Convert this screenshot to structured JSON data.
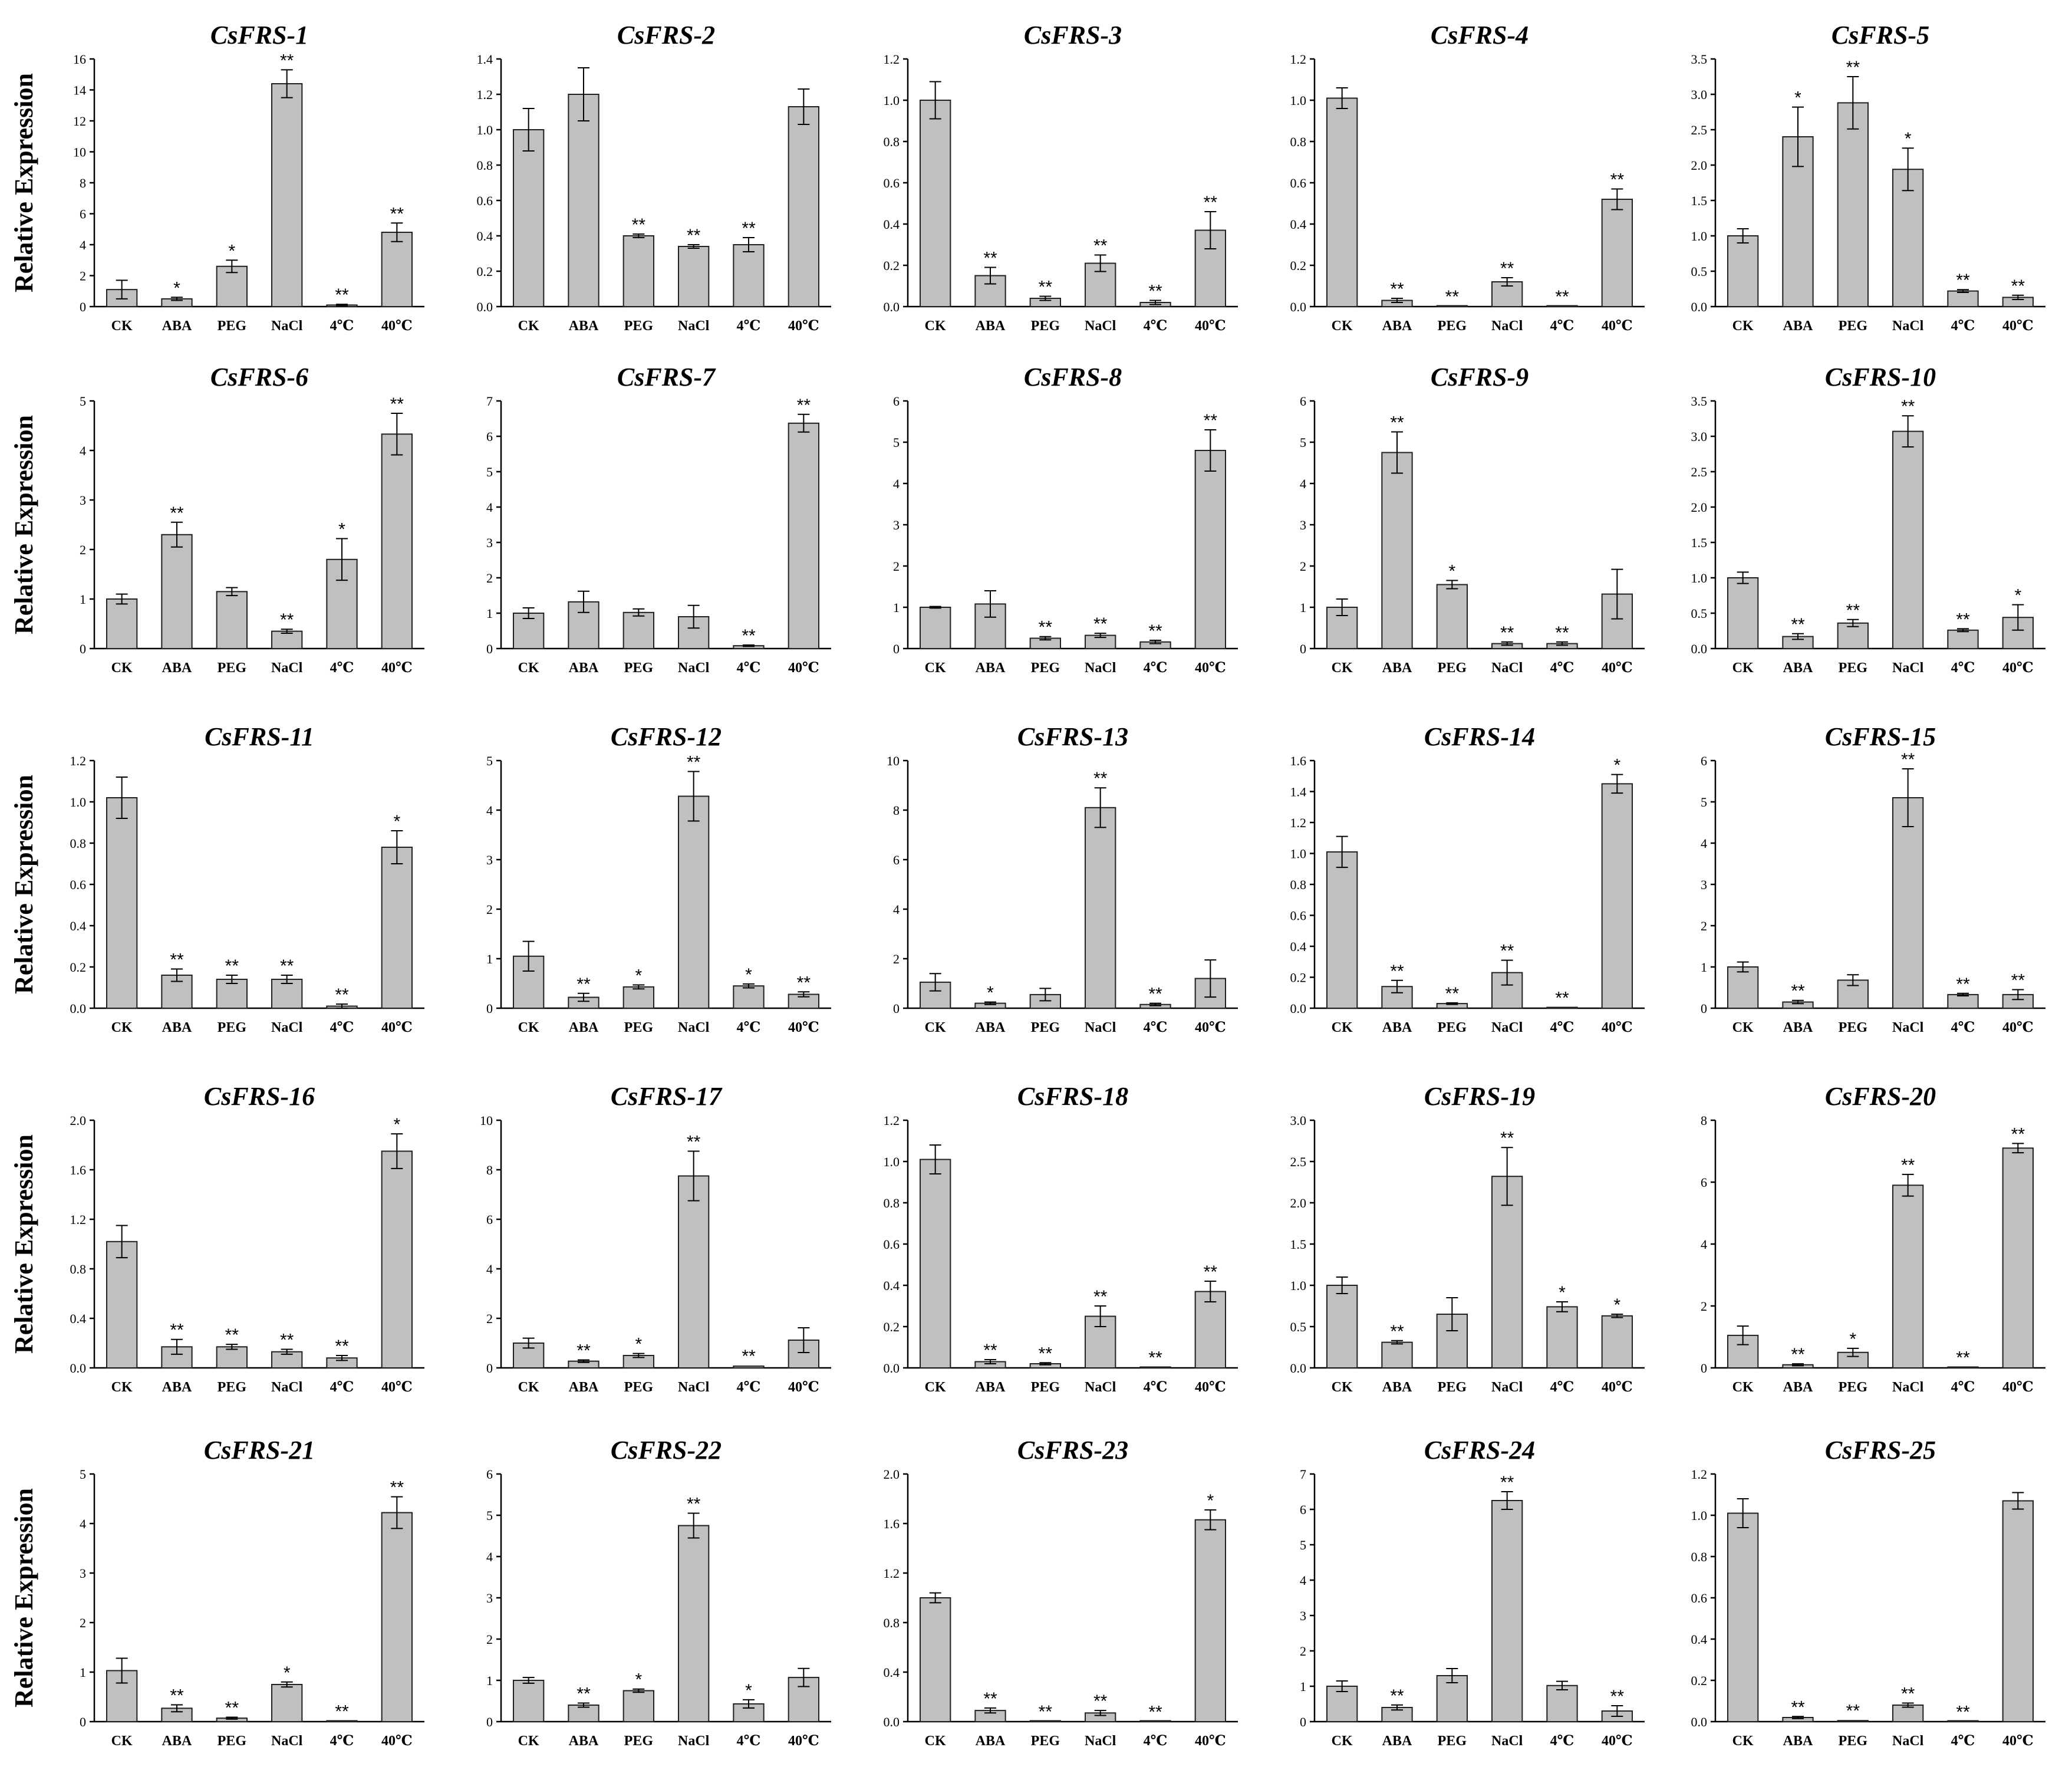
{
  "figure": {
    "ylabel": "Relative Expression",
    "bar_color": "#c0c0c0",
    "axis_color": "#000000"
  },
  "chart_data": [
    {
      "type": "bar",
      "title": "CsFRS-1",
      "ylabel": "Relative Expression",
      "categories": [
        "CK",
        "ABA",
        "PEG",
        "NaCl",
        "4℃",
        "40℃"
      ],
      "values": [
        1.1,
        0.5,
        2.6,
        14.4,
        0.1,
        4.8
      ],
      "errors": [
        0.6,
        0.1,
        0.4,
        0.9,
        0.05,
        0.6
      ],
      "significance": [
        "",
        "*",
        "*",
        "**",
        "**",
        "**"
      ],
      "ylim": [
        0,
        16
      ],
      "yticks": [
        "0",
        "2",
        "4",
        "6",
        "8",
        "10",
        "12",
        "14",
        "16"
      ]
    },
    {
      "type": "bar",
      "title": "CsFRS-2",
      "ylabel": "",
      "categories": [
        "CK",
        "ABA",
        "PEG",
        "NaCl",
        "4℃",
        "40℃"
      ],
      "values": [
        1.0,
        1.2,
        0.4,
        0.34,
        0.35,
        1.13
      ],
      "errors": [
        0.12,
        0.15,
        0.01,
        0.01,
        0.04,
        0.1
      ],
      "significance": [
        "",
        "",
        "**",
        "**",
        "**",
        ""
      ],
      "ylim": [
        0,
        1.4
      ],
      "yticks": [
        "0.0",
        "0.2",
        "0.4",
        "0.6",
        "0.8",
        "1.0",
        "1.2",
        "1.4"
      ]
    },
    {
      "type": "bar",
      "title": "CsFRS-3",
      "ylabel": "",
      "categories": [
        "CK",
        "ABA",
        "PEG",
        "NaCl",
        "4℃",
        "40℃"
      ],
      "values": [
        1.0,
        0.15,
        0.04,
        0.21,
        0.02,
        0.37
      ],
      "errors": [
        0.09,
        0.04,
        0.01,
        0.04,
        0.01,
        0.09
      ],
      "significance": [
        "",
        "**",
        "**",
        "**",
        "**",
        "**"
      ],
      "ylim": [
        0,
        1.2
      ],
      "yticks": [
        "0.0",
        "0.2",
        "0.4",
        "0.6",
        "0.8",
        "1.0",
        "1.2"
      ]
    },
    {
      "type": "bar",
      "title": "CsFRS-4",
      "ylabel": "",
      "categories": [
        "CK",
        "ABA",
        "PEG",
        "NaCl",
        "4℃",
        "40℃"
      ],
      "values": [
        1.01,
        0.03,
        0.002,
        0.12,
        0.002,
        0.52
      ],
      "errors": [
        0.05,
        0.01,
        0.001,
        0.02,
        0.001,
        0.05
      ],
      "significance": [
        "",
        "**",
        "**",
        "**",
        "**",
        "**"
      ],
      "ylim": [
        0,
        1.2
      ],
      "yticks": [
        "0.0",
        "0.2",
        "0.4",
        "0.6",
        "0.8",
        "1.0",
        "1.2"
      ]
    },
    {
      "type": "bar",
      "title": "CsFRS-5",
      "ylabel": "",
      "categories": [
        "CK",
        "ABA",
        "PEG",
        "NaCl",
        "4℃",
        "40℃"
      ],
      "values": [
        1.0,
        2.4,
        2.88,
        1.94,
        0.22,
        0.13
      ],
      "errors": [
        0.1,
        0.42,
        0.37,
        0.3,
        0.02,
        0.03
      ],
      "significance": [
        "",
        "*",
        "**",
        "*",
        "**",
        "**"
      ],
      "ylim": [
        0,
        3.5
      ],
      "yticks": [
        "0.0",
        "0.5",
        "1.0",
        "1.5",
        "2.0",
        "2.5",
        "3.0",
        "3.5"
      ]
    },
    {
      "type": "bar",
      "title": "CsFRS-6",
      "ylabel": "Relative Expression",
      "categories": [
        "CK",
        "ABA",
        "PEG",
        "NaCl",
        "4℃",
        "40℃"
      ],
      "values": [
        1.0,
        2.3,
        1.15,
        0.35,
        1.8,
        4.33
      ],
      "errors": [
        0.1,
        0.25,
        0.08,
        0.04,
        0.42,
        0.42
      ],
      "significance": [
        "",
        "**",
        "",
        "**",
        "*",
        "**"
      ],
      "ylim": [
        0,
        5
      ],
      "yticks": [
        "0",
        "1",
        "2",
        "3",
        "4",
        "5"
      ]
    },
    {
      "type": "bar",
      "title": "CsFRS-7",
      "ylabel": "",
      "categories": [
        "CK",
        "ABA",
        "PEG",
        "NaCl",
        "4℃",
        "40℃"
      ],
      "values": [
        1.0,
        1.32,
        1.02,
        0.9,
        0.08,
        6.37
      ],
      "errors": [
        0.15,
        0.3,
        0.1,
        0.32,
        0.02,
        0.25
      ],
      "significance": [
        "",
        "",
        "",
        "",
        "**",
        "**"
      ],
      "ylim": [
        0,
        7
      ],
      "yticks": [
        "0",
        "1",
        "2",
        "3",
        "4",
        "5",
        "6",
        "7"
      ]
    },
    {
      "type": "bar",
      "title": "CsFRS-8",
      "ylabel": "",
      "categories": [
        "CK",
        "ABA",
        "PEG",
        "NaCl",
        "4℃",
        "40℃"
      ],
      "values": [
        1.0,
        1.08,
        0.25,
        0.32,
        0.16,
        4.8
      ],
      "errors": [
        0.02,
        0.32,
        0.04,
        0.05,
        0.04,
        0.5
      ],
      "significance": [
        "",
        "",
        "**",
        "**",
        "**",
        "**"
      ],
      "ylim": [
        0,
        6
      ],
      "yticks": [
        "0",
        "1",
        "2",
        "3",
        "4",
        "5",
        "6"
      ]
    },
    {
      "type": "bar",
      "title": "CsFRS-9",
      "ylabel": "",
      "categories": [
        "CK",
        "ABA",
        "PEG",
        "NaCl",
        "4℃",
        "40℃"
      ],
      "values": [
        1.0,
        4.75,
        1.55,
        0.12,
        0.12,
        1.32
      ],
      "errors": [
        0.2,
        0.5,
        0.1,
        0.04,
        0.04,
        0.6
      ],
      "significance": [
        "",
        "**",
        "*",
        "**",
        "**",
        ""
      ],
      "ylim": [
        0,
        6
      ],
      "yticks": [
        "0",
        "1",
        "2",
        "3",
        "4",
        "5",
        "6"
      ]
    },
    {
      "type": "bar",
      "title": "CsFRS-10",
      "ylabel": "",
      "categories": [
        "CK",
        "ABA",
        "PEG",
        "NaCl",
        "4℃",
        "40℃"
      ],
      "values": [
        1.0,
        0.17,
        0.36,
        3.07,
        0.26,
        0.44
      ],
      "errors": [
        0.08,
        0.04,
        0.05,
        0.22,
        0.02,
        0.18
      ],
      "significance": [
        "",
        "**",
        "**",
        "**",
        "**",
        "*"
      ],
      "ylim": [
        0,
        3.5
      ],
      "yticks": [
        "0.0",
        "0.5",
        "1.0",
        "1.5",
        "2.0",
        "2.5",
        "3.0",
        "3.5"
      ]
    },
    {
      "type": "bar",
      "title": "CsFRS-11",
      "ylabel": "Relative Expression",
      "categories": [
        "CK",
        "ABA",
        "PEG",
        "NaCl",
        "4℃",
        "40℃"
      ],
      "values": [
        1.02,
        0.16,
        0.14,
        0.14,
        0.01,
        0.78
      ],
      "errors": [
        0.1,
        0.03,
        0.02,
        0.02,
        0.01,
        0.08
      ],
      "significance": [
        "",
        "**",
        "**",
        "**",
        "**",
        "*"
      ],
      "ylim": [
        0,
        1.2
      ],
      "yticks": [
        "0.0",
        "0.2",
        "0.4",
        "0.6",
        "0.8",
        "1.0",
        "1.2"
      ]
    },
    {
      "type": "bar",
      "title": "CsFRS-12",
      "ylabel": "",
      "categories": [
        "CK",
        "ABA",
        "PEG",
        "NaCl",
        "4℃",
        "40℃"
      ],
      "values": [
        1.05,
        0.22,
        0.43,
        4.28,
        0.45,
        0.28
      ],
      "errors": [
        0.3,
        0.08,
        0.04,
        0.5,
        0.04,
        0.05
      ],
      "significance": [
        "",
        "**",
        "*",
        "**",
        "*",
        "**"
      ],
      "ylim": [
        0,
        5
      ],
      "yticks": [
        "0",
        "1",
        "2",
        "3",
        "4",
        "5"
      ]
    },
    {
      "type": "bar",
      "title": "CsFRS-13",
      "ylabel": "",
      "categories": [
        "CK",
        "ABA",
        "PEG",
        "NaCl",
        "4℃",
        "40℃"
      ],
      "values": [
        1.05,
        0.2,
        0.55,
        8.1,
        0.15,
        1.2
      ],
      "errors": [
        0.35,
        0.05,
        0.25,
        0.8,
        0.05,
        0.75
      ],
      "significance": [
        "",
        "*",
        "",
        "**",
        "**",
        ""
      ],
      "ylim": [
        0,
        10
      ],
      "yticks": [
        "0",
        "2",
        "4",
        "6",
        "8",
        "10"
      ]
    },
    {
      "type": "bar",
      "title": "CsFRS-14",
      "ylabel": "",
      "categories": [
        "CK",
        "ABA",
        "PEG",
        "NaCl",
        "4℃",
        "40℃"
      ],
      "values": [
        1.01,
        0.14,
        0.03,
        0.23,
        0.003,
        1.45
      ],
      "errors": [
        0.1,
        0.04,
        0.005,
        0.08,
        0.002,
        0.06
      ],
      "significance": [
        "",
        "**",
        "**",
        "**",
        "**",
        "*"
      ],
      "ylim": [
        0,
        1.6
      ],
      "yticks": [
        "0.0",
        "0.2",
        "0.4",
        "0.6",
        "0.8",
        "1.0",
        "1.2",
        "1.4",
        "1.6"
      ]
    },
    {
      "type": "bar",
      "title": "CsFRS-15",
      "ylabel": "",
      "categories": [
        "CK",
        "ABA",
        "PEG",
        "NaCl",
        "4℃",
        "40℃"
      ],
      "values": [
        1.0,
        0.15,
        0.68,
        5.1,
        0.33,
        0.33
      ],
      "errors": [
        0.12,
        0.04,
        0.13,
        0.7,
        0.03,
        0.12
      ],
      "significance": [
        "",
        "**",
        "",
        "**",
        "**",
        "**"
      ],
      "ylim": [
        0,
        6
      ],
      "yticks": [
        "0",
        "1",
        "2",
        "3",
        "4",
        "5",
        "6"
      ]
    },
    {
      "type": "bar",
      "title": "CsFRS-16",
      "ylabel": "Relative Expression",
      "categories": [
        "CK",
        "ABA",
        "PEG",
        "NaCl",
        "4℃",
        "40℃"
      ],
      "values": [
        1.02,
        0.17,
        0.17,
        0.13,
        0.08,
        1.75
      ],
      "errors": [
        0.13,
        0.06,
        0.02,
        0.02,
        0.02,
        0.14
      ],
      "significance": [
        "",
        "**",
        "**",
        "**",
        "**",
        "*"
      ],
      "ylim": [
        0,
        2.0
      ],
      "yticks": [
        "0.0",
        "0.4",
        "0.8",
        "1.2",
        "1.6",
        "2.0"
      ]
    },
    {
      "type": "bar",
      "title": "CsFRS-17",
      "ylabel": "",
      "categories": [
        "CK",
        "ABA",
        "PEG",
        "NaCl",
        "4℃",
        "40℃"
      ],
      "values": [
        1.0,
        0.27,
        0.5,
        7.75,
        0.07,
        1.12
      ],
      "errors": [
        0.2,
        0.05,
        0.08,
        1.0,
        0.02,
        0.5
      ],
      "significance": [
        "",
        "**",
        "*",
        "**",
        "**",
        ""
      ],
      "ylim": [
        0,
        10
      ],
      "yticks": [
        "0",
        "2",
        "4",
        "6",
        "8",
        "10"
      ]
    },
    {
      "type": "bar",
      "title": "CsFRS-18",
      "ylabel": "",
      "categories": [
        "CK",
        "ABA",
        "PEG",
        "NaCl",
        "4℃",
        "40℃"
      ],
      "values": [
        1.01,
        0.03,
        0.02,
        0.25,
        0.002,
        0.37
      ],
      "errors": [
        0.07,
        0.01,
        0.005,
        0.05,
        0.002,
        0.05
      ],
      "significance": [
        "",
        "**",
        "**",
        "**",
        "**",
        "**"
      ],
      "ylim": [
        0,
        1.2
      ],
      "yticks": [
        "0.0",
        "0.2",
        "0.4",
        "0.6",
        "0.8",
        "1.0",
        "1.2"
      ]
    },
    {
      "type": "bar",
      "title": "CsFRS-19",
      "ylabel": "",
      "categories": [
        "CK",
        "ABA",
        "PEG",
        "NaCl",
        "4℃",
        "40℃"
      ],
      "values": [
        1.0,
        0.31,
        0.65,
        2.32,
        0.74,
        0.63
      ],
      "errors": [
        0.1,
        0.02,
        0.2,
        0.35,
        0.06,
        0.02
      ],
      "significance": [
        "",
        "**",
        "",
        "**",
        "*",
        "*"
      ],
      "ylim": [
        0,
        3.0
      ],
      "yticks": [
        "0.0",
        "0.5",
        "1.0",
        "1.5",
        "2.0",
        "2.5",
        "3.0"
      ]
    },
    {
      "type": "bar",
      "title": "CsFRS-20",
      "ylabel": "",
      "categories": [
        "CK",
        "ABA",
        "PEG",
        "NaCl",
        "4℃",
        "40℃"
      ],
      "values": [
        1.05,
        0.1,
        0.5,
        5.9,
        0.02,
        7.1
      ],
      "errors": [
        0.3,
        0.03,
        0.13,
        0.35,
        0.01,
        0.15
      ],
      "significance": [
        "",
        "**",
        "*",
        "**",
        "**",
        "**"
      ],
      "ylim": [
        0,
        8
      ],
      "yticks": [
        "0",
        "2",
        "4",
        "6",
        "8"
      ]
    },
    {
      "type": "bar",
      "title": "CsFRS-21",
      "ylabel": "Relative Expression",
      "categories": [
        "CK",
        "ABA",
        "PEG",
        "NaCl",
        "4℃",
        "40℃"
      ],
      "values": [
        1.03,
        0.27,
        0.07,
        0.75,
        0.01,
        4.22
      ],
      "errors": [
        0.25,
        0.07,
        0.02,
        0.05,
        0.01,
        0.32
      ],
      "significance": [
        "",
        "**",
        "**",
        "*",
        "**",
        "**"
      ],
      "ylim": [
        0,
        5
      ],
      "yticks": [
        "0",
        "1",
        "2",
        "3",
        "4",
        "5"
      ]
    },
    {
      "type": "bar",
      "title": "CsFRS-22",
      "ylabel": "",
      "categories": [
        "CK",
        "ABA",
        "PEG",
        "NaCl",
        "4℃",
        "40℃"
      ],
      "values": [
        1.0,
        0.4,
        0.75,
        4.75,
        0.43,
        1.07
      ],
      "errors": [
        0.07,
        0.05,
        0.04,
        0.3,
        0.1,
        0.22
      ],
      "significance": [
        "",
        "**",
        "*",
        "**",
        "*",
        ""
      ],
      "ylim": [
        0,
        6
      ],
      "yticks": [
        "0",
        "1",
        "2",
        "3",
        "4",
        "5",
        "6"
      ]
    },
    {
      "type": "bar",
      "title": "CsFRS-23",
      "ylabel": "",
      "categories": [
        "CK",
        "ABA",
        "PEG",
        "NaCl",
        "4℃",
        "40℃"
      ],
      "values": [
        1.0,
        0.09,
        0.003,
        0.07,
        0.002,
        1.63
      ],
      "errors": [
        0.04,
        0.02,
        0.002,
        0.02,
        0.001,
        0.08
      ],
      "significance": [
        "",
        "**",
        "**",
        "**",
        "**",
        "*"
      ],
      "ylim": [
        0,
        2.0
      ],
      "yticks": [
        "0.0",
        "0.4",
        "0.8",
        "1.2",
        "1.6",
        "2.0"
      ]
    },
    {
      "type": "bar",
      "title": "CsFRS-24",
      "ylabel": "",
      "categories": [
        "CK",
        "ABA",
        "PEG",
        "NaCl",
        "4℃",
        "40℃"
      ],
      "values": [
        1.0,
        0.4,
        1.3,
        6.25,
        1.02,
        0.3
      ],
      "errors": [
        0.15,
        0.07,
        0.2,
        0.25,
        0.12,
        0.15
      ],
      "significance": [
        "",
        "**",
        "",
        "**",
        "",
        "**"
      ],
      "ylim": [
        0,
        7
      ],
      "yticks": [
        "0",
        "1",
        "2",
        "3",
        "4",
        "5",
        "6",
        "7"
      ]
    },
    {
      "type": "bar",
      "title": "CsFRS-25",
      "ylabel": "",
      "categories": [
        "CK",
        "ABA",
        "PEG",
        "NaCl",
        "4℃",
        "40℃"
      ],
      "values": [
        1.01,
        0.02,
        0.005,
        0.08,
        0.001,
        1.07
      ],
      "errors": [
        0.07,
        0.005,
        0.002,
        0.01,
        0.001,
        0.04
      ],
      "significance": [
        "",
        "**",
        "**",
        "**",
        "**",
        ""
      ],
      "ylim": [
        0,
        1.2
      ],
      "yticks": [
        "0.0",
        "0.2",
        "0.4",
        "0.6",
        "0.8",
        "1.0",
        "1.2"
      ]
    }
  ]
}
